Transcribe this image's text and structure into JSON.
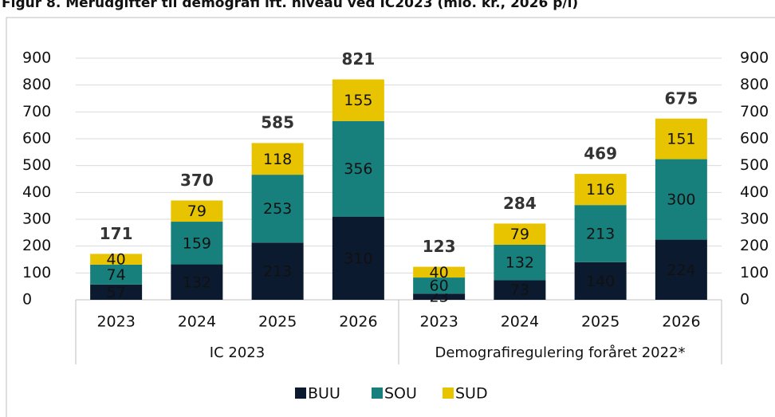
{
  "chart_data": {
    "type": "stacked-bar",
    "title": "Figur 8. Merudgifter til demografi ift. niveau ved IC2023 (mio. kr., 2026 p/l)",
    "groups": [
      {
        "name": "IC 2023",
        "categories": [
          "2023",
          "2024",
          "2025",
          "2026"
        ]
      },
      {
        "name": "Demografiregulering foråret 2022*",
        "categories": [
          "2023",
          "2024",
          "2025",
          "2026"
        ]
      }
    ],
    "series": [
      {
        "name": "BUU",
        "color": "#0b1a2f",
        "label_color": "#ffffff",
        "values": [
          57,
          132,
          213,
          310,
          23,
          73,
          140,
          224
        ]
      },
      {
        "name": "SOU",
        "color": "#17807d",
        "label_color": "#ffffff",
        "values": [
          74,
          159,
          253,
          356,
          60,
          132,
          213,
          300
        ]
      },
      {
        "name": "SUD",
        "color": "#e8c400",
        "label_color": "#1a1a1a",
        "values": [
          40,
          79,
          118,
          155,
          40,
          79,
          116,
          151
        ]
      }
    ],
    "totals": [
      171,
      370,
      585,
      821,
      123,
      284,
      469,
      675
    ],
    "ylim": [
      0,
      900
    ],
    "yticks": [
      0,
      100,
      200,
      300,
      400,
      500,
      600,
      700,
      800,
      900
    ],
    "y2lim": [
      0,
      900
    ],
    "y2ticks": [
      0,
      100,
      200,
      300,
      400,
      500,
      600,
      700,
      800,
      900
    ],
    "grid": true,
    "legend": "bottom"
  }
}
